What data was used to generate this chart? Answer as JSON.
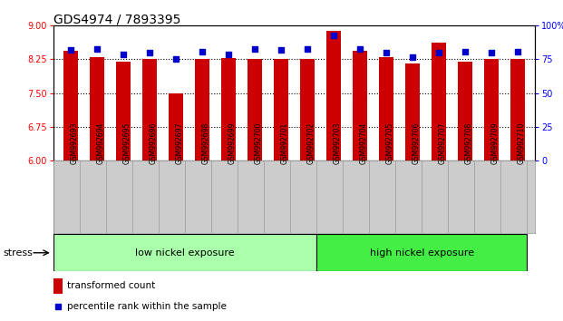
{
  "title": "GDS4974 / 7893395",
  "samples": [
    "GSM992693",
    "GSM992694",
    "GSM992695",
    "GSM992696",
    "GSM992697",
    "GSM992698",
    "GSM992699",
    "GSM992700",
    "GSM992701",
    "GSM992702",
    "GSM992703",
    "GSM992704",
    "GSM992705",
    "GSM992706",
    "GSM992707",
    "GSM992708",
    "GSM992709",
    "GSM992710"
  ],
  "red_values": [
    8.45,
    8.3,
    8.19,
    8.25,
    7.5,
    8.25,
    8.28,
    8.25,
    8.25,
    8.25,
    8.88,
    8.44,
    8.3,
    8.16,
    8.63,
    8.2,
    8.25,
    8.25
  ],
  "blue_values": [
    82,
    83,
    79,
    80,
    75,
    81,
    79,
    83,
    82,
    83,
    93,
    83,
    80,
    77,
    80,
    81,
    80,
    81
  ],
  "ylim_left": [
    6,
    9
  ],
  "ylim_right": [
    0,
    100
  ],
  "yticks_left": [
    6,
    6.75,
    7.5,
    8.25,
    9
  ],
  "yticks_right": [
    0,
    25,
    50,
    75,
    100
  ],
  "bar_color": "#cc0000",
  "dot_color": "#0000cc",
  "group1_count": 10,
  "group1_label": "low nickel exposure",
  "group2_label": "high nickel exposure",
  "stress_label": "stress",
  "legend1": "transformed count",
  "legend2": "percentile rank within the sample",
  "bg_color": "#ffffff",
  "group1_color": "#aaffaa",
  "group2_color": "#44ee44",
  "xlabel_bg": "#cccccc",
  "hline_color": "black",
  "hline_positions": [
    6.75,
    7.5,
    8.25
  ]
}
